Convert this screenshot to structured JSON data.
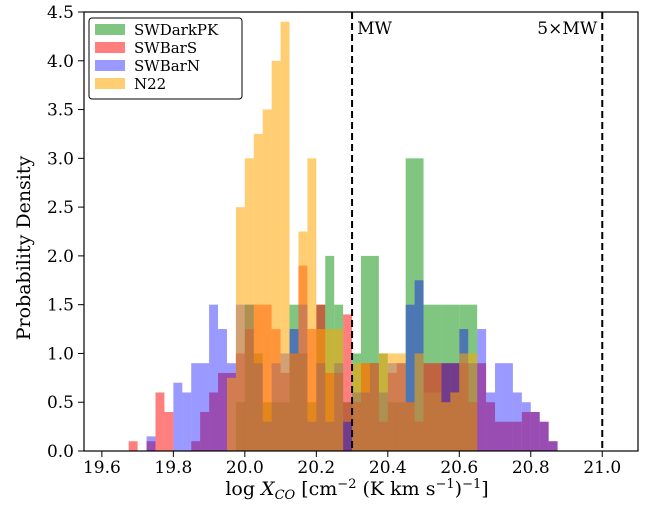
{
  "chart_data": {
    "type": "histogram",
    "xlabel": "log X_CO [cm^-2 (K km s^-1)^-1]",
    "ylabel": "Probability Density",
    "xlim": [
      19.55,
      21.1
    ],
    "ylim": [
      0,
      4.5
    ],
    "x_ticks": [
      "19.6",
      "19.8",
      "20.0",
      "20.2",
      "20.4",
      "20.6",
      "20.8",
      "21.0"
    ],
    "y_ticks": [
      "0.0",
      "0.5",
      "1.0",
      "1.5",
      "2.0",
      "2.5",
      "3.0",
      "3.5",
      "4.0",
      "4.5"
    ],
    "grid": false,
    "legend_position": "top-left",
    "series": [
      {
        "name": "SWDarkPK",
        "color": "#2ca02c",
        "opacity": 0.6,
        "bins": [
          [
            19.975,
            20.0,
            0.5
          ],
          [
            20.0,
            20.025,
            1.5
          ],
          [
            20.025,
            20.05,
            1.0
          ],
          [
            20.05,
            20.075,
            0.5
          ],
          [
            20.075,
            20.1,
            0.5
          ],
          [
            20.1,
            20.125,
            0.5
          ],
          [
            20.125,
            20.15,
            1.5
          ],
          [
            20.15,
            20.175,
            1.0
          ],
          [
            20.175,
            20.2,
            0.5
          ],
          [
            20.2,
            20.225,
            1.5
          ],
          [
            20.225,
            20.25,
            2.0
          ],
          [
            20.25,
            20.275,
            1.5
          ],
          [
            20.275,
            20.3,
            0.5
          ],
          [
            20.3,
            20.325,
            1.0
          ],
          [
            20.325,
            20.375,
            2.0
          ],
          [
            20.375,
            20.4,
            1.0
          ],
          [
            20.4,
            20.45,
            0.5
          ],
          [
            20.45,
            20.5,
            3.0
          ],
          [
            20.5,
            20.55,
            1.5
          ],
          [
            20.55,
            20.6,
            1.5
          ],
          [
            20.6,
            20.65,
            1.5
          ]
        ]
      },
      {
        "name": "SWBarS",
        "color": "#ff0000",
        "opacity": 0.5,
        "bins": [
          [
            19.675,
            19.7,
            0.1
          ],
          [
            19.725,
            19.75,
            0.1
          ],
          [
            19.75,
            19.775,
            0.6
          ],
          [
            19.775,
            19.8,
            0.4
          ],
          [
            19.85,
            19.875,
            0.1
          ],
          [
            19.875,
            19.9,
            0.4
          ],
          [
            19.9,
            19.925,
            0.6
          ],
          [
            19.925,
            19.95,
            0.8
          ],
          [
            19.95,
            19.975,
            0.8
          ],
          [
            19.975,
            20.0,
            1.0
          ],
          [
            20.0,
            20.025,
            1.25
          ],
          [
            20.025,
            20.05,
            1.5
          ],
          [
            20.05,
            20.075,
            1.5
          ],
          [
            20.075,
            20.1,
            1.25
          ],
          [
            20.1,
            20.125,
            0.8
          ],
          [
            20.125,
            20.15,
            1.0
          ],
          [
            20.15,
            20.175,
            1.9
          ],
          [
            20.175,
            20.2,
            1.25
          ],
          [
            20.2,
            20.225,
            1.5
          ],
          [
            20.225,
            20.25,
            0.8
          ],
          [
            20.25,
            20.275,
            0.8
          ],
          [
            20.275,
            20.3,
            1.4
          ],
          [
            20.3,
            20.325,
            0.5
          ],
          [
            20.325,
            20.35,
            0.9
          ],
          [
            20.35,
            20.375,
            0.9
          ],
          [
            20.375,
            20.4,
            0.3
          ],
          [
            20.4,
            20.425,
            0.8
          ],
          [
            20.425,
            20.45,
            0.9
          ],
          [
            20.45,
            20.475,
            0.5
          ],
          [
            20.475,
            20.5,
            0.3
          ],
          [
            20.5,
            20.525,
            0.9
          ],
          [
            20.525,
            20.55,
            0.9
          ],
          [
            20.55,
            20.575,
            0.9
          ],
          [
            20.575,
            20.6,
            0.9
          ],
          [
            20.6,
            20.625,
            0.9
          ],
          [
            20.625,
            20.65,
            0.5
          ],
          [
            20.65,
            20.675,
            0.9
          ],
          [
            20.675,
            20.7,
            0.5
          ],
          [
            20.7,
            20.725,
            0.3
          ],
          [
            20.725,
            20.75,
            0.3
          ],
          [
            20.75,
            20.775,
            0.3
          ],
          [
            20.775,
            20.8,
            0.4
          ],
          [
            20.8,
            20.825,
            0.4
          ],
          [
            20.825,
            20.85,
            0.3
          ],
          [
            20.85,
            20.875,
            0.1
          ]
        ]
      },
      {
        "name": "SWBarN",
        "color": "#0000ff",
        "opacity": 0.4,
        "bins": [
          [
            19.725,
            19.75,
            0.15
          ],
          [
            19.8,
            19.825,
            0.7
          ],
          [
            19.825,
            19.85,
            0.6
          ],
          [
            19.85,
            19.9,
            0.9
          ],
          [
            19.9,
            19.925,
            1.5
          ],
          [
            19.925,
            19.95,
            1.25
          ],
          [
            19.95,
            19.975,
            0.9
          ],
          [
            19.975,
            20.025,
            1.5
          ],
          [
            20.025,
            20.05,
            0.9
          ],
          [
            20.05,
            20.075,
            0.3
          ],
          [
            20.075,
            20.1,
            0.9
          ],
          [
            20.1,
            20.125,
            1.0
          ],
          [
            20.125,
            20.15,
            1.25
          ],
          [
            20.15,
            20.175,
            1.5
          ],
          [
            20.175,
            20.2,
            0.3
          ],
          [
            20.2,
            20.225,
            0.9
          ],
          [
            20.225,
            20.25,
            0.3
          ],
          [
            20.25,
            20.275,
            0.9
          ],
          [
            20.275,
            20.3,
            0.3
          ],
          [
            20.3,
            20.35,
            0.6
          ],
          [
            20.35,
            20.375,
            0.9
          ],
          [
            20.375,
            20.4,
            0.6
          ],
          [
            20.4,
            20.425,
            0.9
          ],
          [
            20.425,
            20.45,
            0.9
          ],
          [
            20.45,
            20.475,
            1.5
          ],
          [
            20.475,
            20.5,
            1.75
          ],
          [
            20.5,
            20.525,
            0.6
          ],
          [
            20.525,
            20.55,
            0.6
          ],
          [
            20.55,
            20.575,
            0.9
          ],
          [
            20.575,
            20.6,
            0.9
          ],
          [
            20.6,
            20.625,
            1.25
          ],
          [
            20.625,
            20.65,
            0.9
          ],
          [
            20.65,
            20.675,
            1.25
          ],
          [
            20.675,
            20.7,
            0.6
          ],
          [
            20.7,
            20.725,
            0.9
          ],
          [
            20.725,
            20.75,
            0.9
          ],
          [
            20.75,
            20.775,
            0.6
          ],
          [
            20.775,
            20.8,
            0.5
          ],
          [
            20.8,
            20.825,
            0.4
          ],
          [
            20.825,
            20.85,
            0.3
          ],
          [
            20.85,
            20.875,
            0.1
          ]
        ]
      },
      {
        "name": "N22",
        "color": "#ffa500",
        "opacity": 0.55,
        "bins": [
          [
            19.95,
            19.975,
            0.75
          ],
          [
            19.975,
            20.0,
            2.5
          ],
          [
            20.0,
            20.025,
            3.0
          ],
          [
            20.025,
            20.05,
            3.25
          ],
          [
            20.05,
            20.075,
            3.5
          ],
          [
            20.075,
            20.1,
            4.0
          ],
          [
            20.1,
            20.125,
            4.4
          ],
          [
            20.125,
            20.15,
            1.0
          ],
          [
            20.15,
            20.175,
            2.25
          ],
          [
            20.175,
            20.2,
            3.0
          ],
          [
            20.2,
            20.225,
            1.25
          ],
          [
            20.225,
            20.25,
            1.25
          ],
          [
            20.25,
            20.275,
            1.25
          ],
          [
            20.275,
            20.3,
            0.0
          ],
          [
            20.3,
            20.325,
            0.9
          ],
          [
            20.325,
            20.35,
            0.9
          ],
          [
            20.35,
            20.375,
            0.9
          ],
          [
            20.375,
            20.4,
            1.0
          ],
          [
            20.4,
            20.425,
            1.0
          ],
          [
            20.425,
            20.45,
            1.0
          ],
          [
            20.45,
            20.475,
            0.5
          ],
          [
            20.475,
            20.5,
            1.0
          ],
          [
            20.5,
            20.525,
            0.6
          ],
          [
            20.525,
            20.55,
            0.6
          ],
          [
            20.55,
            20.575,
            0.5
          ],
          [
            20.575,
            20.6,
            0.6
          ],
          [
            20.6,
            20.625,
            1.0
          ],
          [
            20.625,
            20.65,
            1.0
          ]
        ]
      }
    ],
    "reference_lines": [
      {
        "x": 20.3,
        "label": "MW"
      },
      {
        "x": 21.0,
        "label": "5×MW"
      }
    ]
  }
}
